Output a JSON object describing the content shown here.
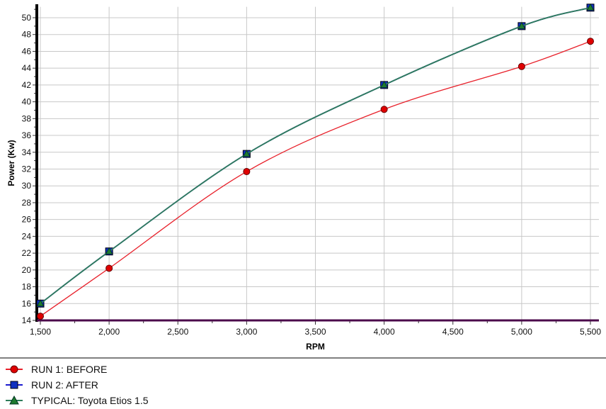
{
  "chart_data": {
    "type": "line",
    "xlabel": "RPM",
    "ylabel": "Power (Kw)",
    "xlim": [
      1500,
      5500
    ],
    "ylim": [
      14,
      51.3
    ],
    "x_ticks": [
      1500,
      2000,
      2500,
      3000,
      3500,
      4000,
      4500,
      5000,
      5500
    ],
    "x_tick_labels": [
      "1,500",
      "2,000",
      "2,500",
      "3,000",
      "3,500",
      "4,000",
      "4,500",
      "5,000",
      "5,500"
    ],
    "y_ticks": [
      14,
      16,
      18,
      20,
      22,
      24,
      26,
      28,
      30,
      32,
      34,
      36,
      38,
      40,
      42,
      44,
      46,
      48,
      50
    ],
    "grid": true,
    "legend_placement": "bottom",
    "baseline": {
      "value": 14,
      "color": "#4b0a4b"
    },
    "series": [
      {
        "name": "RUN 1: BEFORE",
        "color": "#e8202a",
        "marker": "circle",
        "marker_color": "#e00000",
        "x": [
          1500,
          2000,
          3000,
          4000,
          5000,
          5500
        ],
        "y": [
          14.5,
          20.2,
          31.7,
          39.1,
          44.2,
          47.2
        ]
      },
      {
        "name": "RUN 2: AFTER",
        "color": "#1a1ad0",
        "marker": "square",
        "marker_color": "#1030c0",
        "x": [
          1500,
          2000,
          3000,
          4000,
          5000,
          5500
        ],
        "y": [
          16.0,
          22.2,
          33.8,
          42.0,
          49.0,
          51.2
        ]
      },
      {
        "name": "TYPICAL: Toyota Etios 1.5",
        "color": "#2e7d5a",
        "marker": "triangle",
        "marker_color": "#1f7a2f",
        "x": [
          1500,
          2000,
          3000,
          4000,
          5000,
          5500
        ],
        "y": [
          16.0,
          22.2,
          33.8,
          42.0,
          49.0,
          51.2
        ]
      }
    ]
  }
}
